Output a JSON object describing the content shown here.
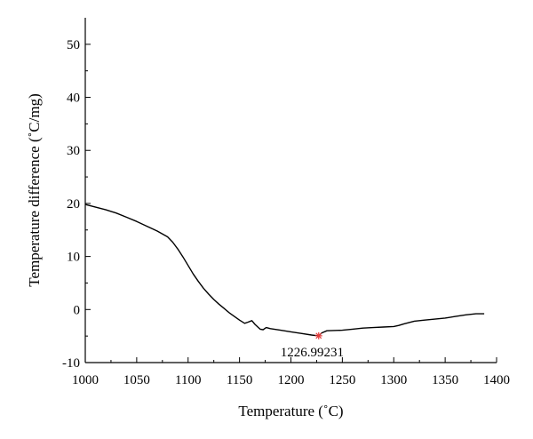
{
  "chart_data": {
    "type": "line",
    "title": "",
    "xlabel": "Temperature (˚C)",
    "ylabel": "Temperature difference (˚C/mg)",
    "xlim": [
      1000,
      1400
    ],
    "ylim": [
      -10,
      55
    ],
    "xticks": [
      1000,
      1050,
      1100,
      1150,
      1200,
      1250,
      1300,
      1350,
      1400
    ],
    "yticks": [
      -10,
      0,
      10,
      20,
      30,
      40,
      50
    ],
    "grid": false,
    "legend": "none",
    "series": [
      {
        "color": "#000000",
        "points": [
          [
            1000,
            19.8
          ],
          [
            1010,
            19.3
          ],
          [
            1020,
            18.8
          ],
          [
            1030,
            18.2
          ],
          [
            1040,
            17.4
          ],
          [
            1050,
            16.6
          ],
          [
            1060,
            15.7
          ],
          [
            1070,
            14.8
          ],
          [
            1080,
            13.7
          ],
          [
            1085,
            12.7
          ],
          [
            1090,
            11.4
          ],
          [
            1095,
            9.9
          ],
          [
            1100,
            8.3
          ],
          [
            1105,
            6.7
          ],
          [
            1110,
            5.3
          ],
          [
            1115,
            4.0
          ],
          [
            1120,
            2.9
          ],
          [
            1125,
            1.9
          ],
          [
            1130,
            1.0
          ],
          [
            1135,
            0.2
          ],
          [
            1140,
            -0.6
          ],
          [
            1145,
            -1.3
          ],
          [
            1150,
            -2.0
          ],
          [
            1155,
            -2.6
          ],
          [
            1158,
            -2.4
          ],
          [
            1162,
            -2.1
          ],
          [
            1165,
            -2.8
          ],
          [
            1170,
            -3.7
          ],
          [
            1173,
            -3.8
          ],
          [
            1176,
            -3.4
          ],
          [
            1180,
            -3.6
          ],
          [
            1190,
            -3.9
          ],
          [
            1200,
            -4.2
          ],
          [
            1210,
            -4.5
          ],
          [
            1220,
            -4.8
          ],
          [
            1226.99,
            -4.95
          ],
          [
            1230,
            -4.4
          ],
          [
            1235,
            -4.0
          ],
          [
            1250,
            -3.9
          ],
          [
            1260,
            -3.7
          ],
          [
            1270,
            -3.5
          ],
          [
            1280,
            -3.4
          ],
          [
            1290,
            -3.3
          ],
          [
            1300,
            -3.2
          ],
          [
            1305,
            -3.0
          ],
          [
            1310,
            -2.7
          ],
          [
            1320,
            -2.2
          ],
          [
            1330,
            -2.0
          ],
          [
            1340,
            -1.8
          ],
          [
            1350,
            -1.6
          ],
          [
            1360,
            -1.3
          ],
          [
            1370,
            -1.0
          ],
          [
            1380,
            -0.8
          ],
          [
            1388,
            -0.8
          ]
        ]
      }
    ],
    "annotations": [
      {
        "x": 1226.99231,
        "y": -4.95,
        "text": "1226.99231",
        "marker": "star",
        "color": "#e53a3a"
      }
    ]
  }
}
